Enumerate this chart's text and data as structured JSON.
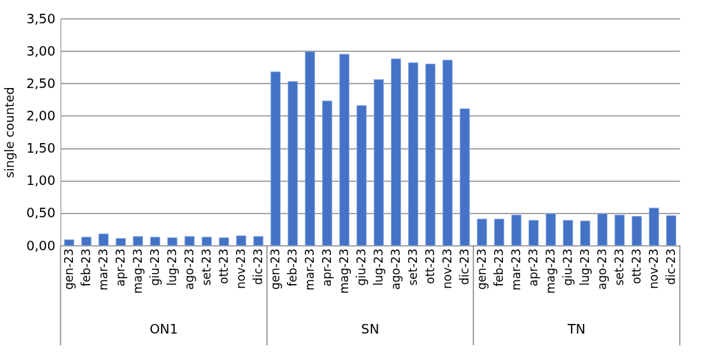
{
  "chart_data": {
    "type": "bar",
    "ylabel": "single counted",
    "categories": [
      "gen-23",
      "feb-23",
      "mar-23",
      "apr-23",
      "mag-23",
      "giu-23",
      "lug-23",
      "ago-23",
      "set-23",
      "ott-23",
      "nov-23",
      "dic-23",
      "gen-23",
      "feb-23",
      "mar-23",
      "apr-23",
      "mag-23",
      "giu-23",
      "lug-23",
      "ago-23",
      "set-23",
      "ott-23",
      "nov-23",
      "dic-23",
      "gen-23",
      "feb-23",
      "mar-23",
      "apr-23",
      "mag-23",
      "giu-23",
      "lug-23",
      "ago-23",
      "set-23",
      "ott-23",
      "nov-23",
      "dic-23"
    ],
    "values": [
      0.09,
      0.13,
      0.18,
      0.11,
      0.14,
      0.13,
      0.12,
      0.14,
      0.13,
      0.12,
      0.15,
      0.14,
      2.68,
      2.53,
      2.99,
      2.23,
      2.95,
      2.16,
      2.56,
      2.88,
      2.82,
      2.8,
      2.86,
      2.11,
      0.41,
      0.41,
      0.47,
      0.39,
      0.49,
      0.39,
      0.38,
      0.49,
      0.47,
      0.45,
      0.58,
      0.46
    ],
    "color": "#4472c4",
    "annotations": [
      "ON1",
      "SN",
      "TN"
    ],
    "ylim": [
      0,
      3.5
    ],
    "yticks": [
      {
        "value": 0,
        "label": "0,00"
      },
      {
        "value": 0.5,
        "label": "0,50"
      },
      {
        "value": 1,
        "label": "1,00"
      },
      {
        "value": 1.5,
        "label": "1,50"
      },
      {
        "value": 2,
        "label": "2,00"
      },
      {
        "value": 2.5,
        "label": "2,50"
      },
      {
        "value": 3,
        "label": "3,00"
      },
      {
        "value": 3.5,
        "label": "3,50"
      }
    ],
    "grid": "y"
  }
}
